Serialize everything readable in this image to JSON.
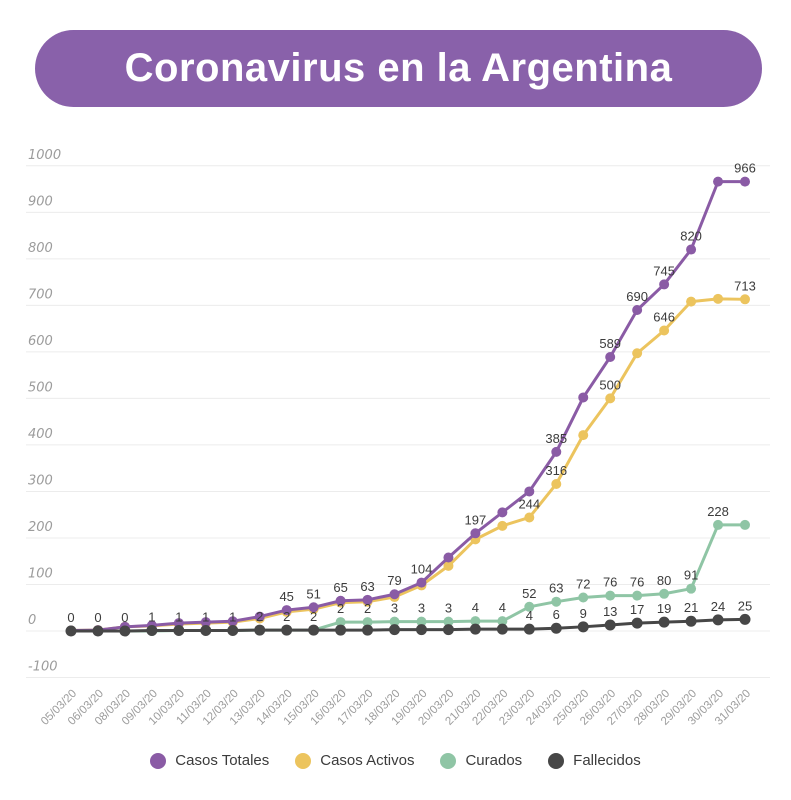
{
  "title": "Coronavirus en la Argentina",
  "colors": {
    "banner": "#8961aa",
    "grid": "#ececec",
    "axis_text": "#9c9c9c",
    "data_label_text": "#3c3c3c",
    "legend_text": "#3b3b3b",
    "background": "#ffffff"
  },
  "chart_data": {
    "type": "line",
    "title": "Coronavirus en la Argentina",
    "xlabel": "",
    "ylabel": "",
    "ylim": [
      -100,
      1000
    ],
    "ytick_step": 100,
    "y_ticks": [
      1000,
      900,
      800,
      700,
      600,
      500,
      400,
      300,
      200,
      100,
      0,
      -100
    ],
    "grid": "horizontal",
    "legend_position": "bottom",
    "x": [
      "05/03/20",
      "06/03/20",
      "08/03/20",
      "09/03/20",
      "10/03/20",
      "11/03/20",
      "12/03/20",
      "13/03/20",
      "14/03/20",
      "15/03/20",
      "16/03/20",
      "17/03/20",
      "18/03/20",
      "19/03/20",
      "20/03/20",
      "21/03/20",
      "22/03/20",
      "23/03/20",
      "24/03/20",
      "25/03/20",
      "26/03/20",
      "27/03/20",
      "28/03/20",
      "29/03/20",
      "30/03/20",
      "31/03/20"
    ],
    "series": [
      {
        "name": "Casos Totales",
        "slug": "casos-totales",
        "color": "#8a5ba5",
        "values": [
          1,
          2,
          9,
          12,
          17,
          19,
          21,
          31,
          45,
          51,
          65,
          67,
          79,
          104,
          158,
          210,
          255,
          300,
          385,
          502,
          589,
          690,
          745,
          820,
          966,
          966
        ],
        "labels": [
          null,
          null,
          null,
          null,
          null,
          null,
          null,
          null,
          "45",
          "51",
          "65",
          null,
          "79",
          "104",
          null,
          null,
          null,
          null,
          "385",
          null,
          "589",
          "690",
          "745",
          "820",
          null,
          "966"
        ]
      },
      {
        "name": "Casos Activos",
        "slug": "casos-activos",
        "color": "#ecc45e",
        "values": [
          1,
          2,
          9,
          11,
          15,
          17,
          19,
          27,
          41,
          47,
          61,
          63,
          73,
          98,
          140,
          197,
          226,
          244,
          316,
          421,
          500,
          597,
          646,
          708,
          714,
          713
        ],
        "labels": [
          null,
          null,
          null,
          null,
          null,
          null,
          null,
          null,
          null,
          null,
          null,
          "63",
          null,
          null,
          null,
          "197",
          null,
          "244",
          "316",
          null,
          "500",
          null,
          "646",
          null,
          null,
          "713"
        ]
      },
      {
        "name": "Curados",
        "slug": "curados",
        "color": "#8fc5a5",
        "values": [
          0,
          0,
          0,
          0,
          1,
          1,
          1,
          2,
          2,
          2,
          2,
          2,
          3,
          3,
          3,
          4,
          4,
          52,
          63,
          72,
          76,
          76,
          80,
          91,
          228,
          228
        ],
        "labels": [
          null,
          null,
          null,
          null,
          null,
          null,
          null,
          null,
          null,
          null,
          null,
          null,
          null,
          null,
          null,
          null,
          null,
          "52",
          "63",
          "72",
          "76",
          "76",
          "80",
          "91",
          "228",
          null
        ]
      },
      {
        "name": "Fallecidos",
        "slug": "fallecidos",
        "color": "#474747",
        "values": [
          0,
          0,
          0,
          1,
          1,
          1,
          1,
          2,
          2,
          2,
          2,
          2,
          3,
          3,
          3,
          4,
          4,
          4,
          6,
          9,
          13,
          17,
          19,
          21,
          24,
          25
        ],
        "labels": [
          "0",
          "0",
          "0",
          "1",
          "1",
          "1",
          "1",
          "2",
          "2",
          "2",
          "2",
          "2",
          "3",
          "3",
          "3",
          "4",
          "4",
          "4",
          "6",
          "9",
          "13",
          "17",
          "19",
          "21",
          "24",
          "25"
        ]
      }
    ]
  },
  "legend": {
    "items": [
      {
        "label": "Casos Totales",
        "color": "#8a5ba5"
      },
      {
        "label": "Casos Activos",
        "color": "#ecc45e"
      },
      {
        "label": "Curados",
        "color": "#8fc5a5"
      },
      {
        "label": "Fallecidos",
        "color": "#474747"
      }
    ]
  }
}
